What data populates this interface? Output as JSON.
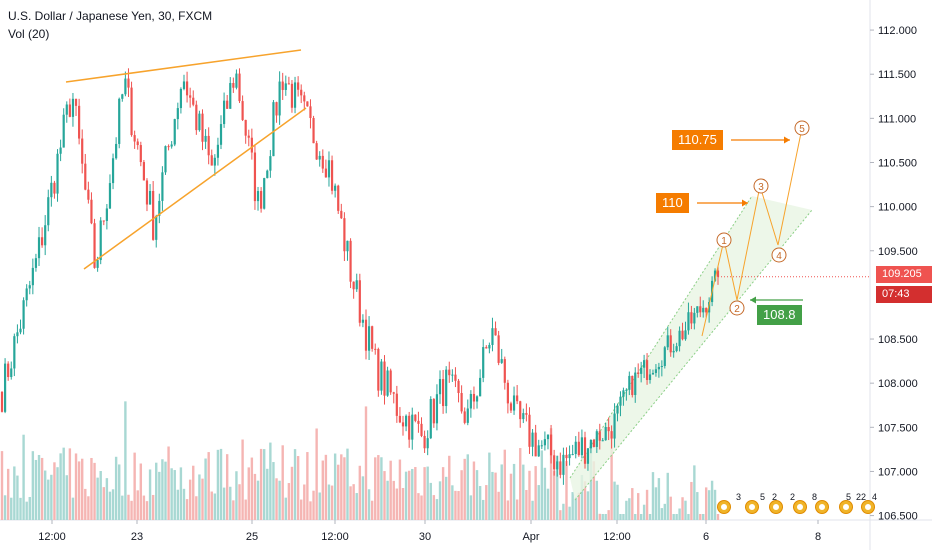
{
  "legend": {
    "title": "U.S. Dollar / Japanese Yen, 30, FXCM",
    "volume": "Vol (20)"
  },
  "price_axis": {
    "ticks": [
      "112.000",
      "111.500",
      "111.000",
      "110.500",
      "110.000",
      "109.500",
      "108.500",
      "108.000",
      "107.500",
      "107.000",
      "106.500"
    ],
    "partial_tick": "10"
  },
  "time_axis": {
    "ticks": [
      "12:00",
      "23",
      "25",
      "12:00",
      "30",
      "Apr",
      "12:00",
      "6",
      "8"
    ]
  },
  "last_price": {
    "value": "109.205",
    "countdown": "07:43"
  },
  "annotations": {
    "target_1": "110.75",
    "target_2": "110",
    "support": "108.8",
    "wave_labels": [
      "1",
      "2",
      "3",
      "4",
      "5"
    ],
    "event_icon_labels": [
      "3",
      "5",
      "2",
      "2",
      "8",
      "5",
      "22",
      "4"
    ]
  },
  "colors": {
    "bull": "#26a69a",
    "bear": "#ef5350",
    "vol_bull": "#a8d8d3",
    "vol_bear": "#f5b5b3",
    "trendline": "#f7a32c",
    "wave": "#f7a32c",
    "channel_fill": "#e8f5e3",
    "channel_line": "#8ccf87",
    "tag_orange": "#f57c00",
    "tag_green": "#43a047",
    "price_tag": "#ef5350",
    "countdown_tag": "#d32f2f"
  },
  "chart_data": {
    "type": "candlestick",
    "title": "U.S. Dollar / Japanese Yen, 30, FXCM",
    "ylim": [
      106.45,
      112.25
    ],
    "x_ticks": [
      "12:00",
      "23",
      "25",
      "12:00",
      "30",
      "Apr",
      "12:00",
      "6",
      "8"
    ],
    "path_anchors": [
      {
        "t": 0.0,
        "p": 107.9
      },
      {
        "t": 0.06,
        "p": 109.4
      },
      {
        "t": 0.12,
        "p": 111.3
      },
      {
        "t": 0.16,
        "p": 109.3
      },
      {
        "t": 0.21,
        "p": 111.4
      },
      {
        "t": 0.26,
        "p": 109.8
      },
      {
        "t": 0.31,
        "p": 111.5
      },
      {
        "t": 0.36,
        "p": 110.4
      },
      {
        "t": 0.4,
        "p": 111.55
      },
      {
        "t": 0.44,
        "p": 110.0
      },
      {
        "t": 0.48,
        "p": 111.5
      },
      {
        "t": 0.52,
        "p": 111.0
      },
      {
        "t": 0.56,
        "p": 110.5
      },
      {
        "t": 0.6,
        "p": 109.2
      },
      {
        "t": 0.64,
        "p": 108.2
      },
      {
        "t": 0.68,
        "p": 107.7
      },
      {
        "t": 0.72,
        "p": 107.4
      },
      {
        "t": 0.76,
        "p": 108.0
      },
      {
        "t": 0.8,
        "p": 107.6
      },
      {
        "t": 0.84,
        "p": 108.6
      },
      {
        "t": 0.88,
        "p": 107.6
      },
      {
        "t": 0.92,
        "p": 107.3
      },
      {
        "t": 0.96,
        "p": 107.1
      },
      {
        "t": 1.0,
        "p": 107.3
      }
    ],
    "path_anchors_2": [
      {
        "t": 0.0,
        "p": 107.3
      },
      {
        "t": 0.2,
        "p": 107.5
      },
      {
        "t": 0.35,
        "p": 108.0
      },
      {
        "t": 0.55,
        "p": 108.3
      },
      {
        "t": 0.75,
        "p": 108.6
      },
      {
        "t": 0.9,
        "p": 108.9
      },
      {
        "t": 1.0,
        "p": 109.2
      }
    ],
    "last_price": 109.205,
    "wave_targets": [
      {
        "label": "1",
        "price": 109.55
      },
      {
        "label": "2",
        "price": 108.82
      },
      {
        "label": "3",
        "price": 110.2
      },
      {
        "label": "4",
        "price": 109.5
      },
      {
        "label": "5",
        "price": 110.85
      }
    ],
    "target_levels": [
      110.75,
      110.0,
      108.8
    ]
  }
}
